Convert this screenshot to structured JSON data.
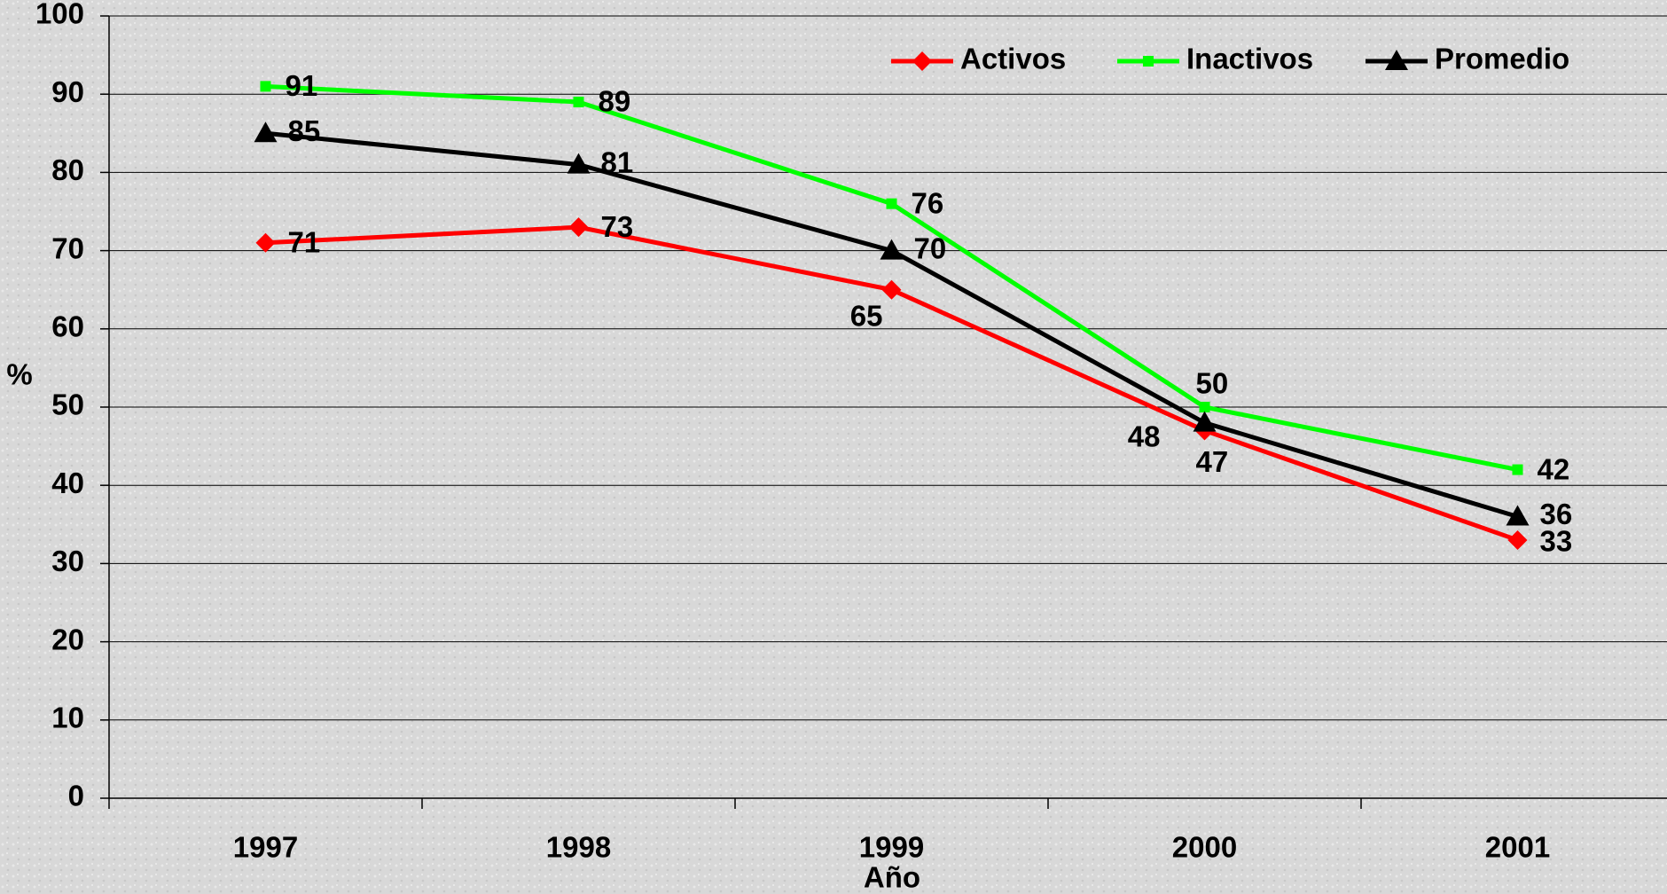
{
  "chart_data": {
    "type": "line",
    "x_label": "Año",
    "y_label": "%",
    "categories": [
      "1997",
      "1998",
      "1999",
      "2000",
      "2001"
    ],
    "series": [
      {
        "name": "Activos",
        "color": "#ff0000",
        "marker": "diamond",
        "values": [
          71,
          73,
          65,
          47,
          33
        ]
      },
      {
        "name": "Inactivos",
        "color": "#00ff00",
        "marker": "square",
        "values": [
          91,
          89,
          76,
          50,
          42
        ]
      },
      {
        "name": "Promedio",
        "color": "#000000",
        "marker": "triangle",
        "values": [
          85,
          81,
          70,
          48,
          36
        ]
      }
    ],
    "ylim": [
      0,
      100
    ],
    "yticks": [
      0,
      10,
      20,
      30,
      40,
      50,
      60,
      70,
      80,
      90,
      100
    ],
    "grid": true,
    "legend": "top-right"
  }
}
